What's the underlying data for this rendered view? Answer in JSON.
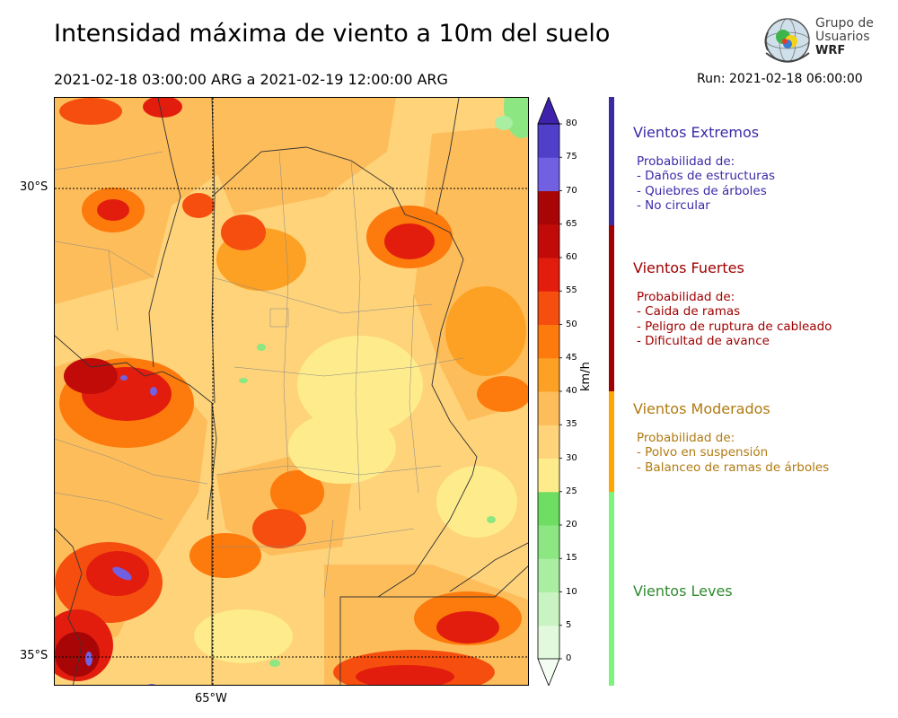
{
  "title": "Intensidad máxima de viento a 10m del suelo",
  "period": "2021-02-18 03:00:00 ARG  a  2021-02-19 12:00:00 ARG",
  "run": "Run: 2021-02-18 06:00:00",
  "logo": {
    "line1": "Grupo de",
    "line2": "Usuarios",
    "line3": "WRF"
  },
  "map": {
    "lat_labels": [
      "30°S",
      "35°S"
    ],
    "lon_labels": [
      "65°W"
    ]
  },
  "colorbar": {
    "unit": "km/h",
    "ticks": [
      "0",
      "5",
      "10",
      "15",
      "20",
      "25",
      "30",
      "35",
      "40",
      "45",
      "50",
      "55",
      "60",
      "65",
      "70",
      "75",
      "80"
    ],
    "colors": [
      "#f4fdf2",
      "#e3f9dd",
      "#c9f3c2",
      "#aaeea2",
      "#8ce681",
      "#6ede63",
      "#feec8c",
      "#fed37a",
      "#fdbd5a",
      "#fda124",
      "#fd7a0c",
      "#f54e0f",
      "#e21d0e",
      "#c10b09",
      "#a80606",
      "#7161e2",
      "#5040c9",
      "#3f22ac"
    ]
  },
  "legend": {
    "categories": [
      {
        "name": "Vientos Extremos",
        "color": "#3a2aa8",
        "desc_title": "Probabilidad de:",
        "items": [
          "- Daños de estructuras",
          "- Quiebres de árboles",
          "- No circular"
        ]
      },
      {
        "name": "Vientos Fuertes",
        "color": "#a00000",
        "desc_title": "Probabilidad de:",
        "items": [
          "- Caida de ramas",
          "- Peligro de ruptura de cableado",
          "- Dificultad de avance"
        ]
      },
      {
        "name": "Vientos Moderados",
        "color": "#b07a10",
        "desc_title": "Probabilidad de:",
        "items": [
          "- Polvo en suspensión",
          "- Balanceo de ramas de árboles"
        ]
      },
      {
        "name": "Vientos Leves",
        "color": "#2f8a2f",
        "desc_title": "",
        "items": []
      }
    ],
    "bar_colors": [
      "#3a2aa8",
      "#a00000",
      "#ffa500",
      "#7cf47c"
    ]
  }
}
